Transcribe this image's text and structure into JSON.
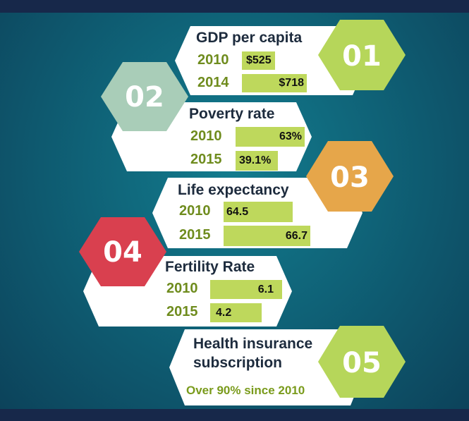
{
  "colors": {
    "background": "#0f6277",
    "band": "#17284a",
    "card": "#ffffff",
    "title": "#1d2b3d",
    "year": "#6f8c1e",
    "bar": "#bed85c",
    "hex_01": "#b6d65a",
    "hex_02": "#a9cdb8",
    "hex_03": "#e6a64a",
    "hex_04": "#d9404f",
    "hex_05": "#b6d65a"
  },
  "cards": [
    {
      "number": "01",
      "title": "GDP per capita",
      "rows": [
        {
          "year": "2010",
          "label": "$525",
          "value": 525
        },
        {
          "year": "2014",
          "label": "$718",
          "value": 718
        }
      ]
    },
    {
      "number": "02",
      "title": "Poverty rate",
      "rows": [
        {
          "year": "2010",
          "label": "63%",
          "value": 63
        },
        {
          "year": "2015",
          "label": "39.1%",
          "value": 39.1
        }
      ]
    },
    {
      "number": "03",
      "title": "Life expectancy",
      "rows": [
        {
          "year": "2010",
          "label": "64.5",
          "value": 64.5
        },
        {
          "year": "2015",
          "label": "66.7",
          "value": 66.7
        }
      ]
    },
    {
      "number": "04",
      "title": "Fertility Rate",
      "rows": [
        {
          "year": "2010",
          "label": "6.1",
          "value": 6.1
        },
        {
          "year": "2015",
          "label": "4.2",
          "value": 4.2
        }
      ]
    },
    {
      "number": "05",
      "title_line1": "Health insurance",
      "title_line2": "subscription",
      "note": "Over 90% since 2010"
    }
  ]
}
